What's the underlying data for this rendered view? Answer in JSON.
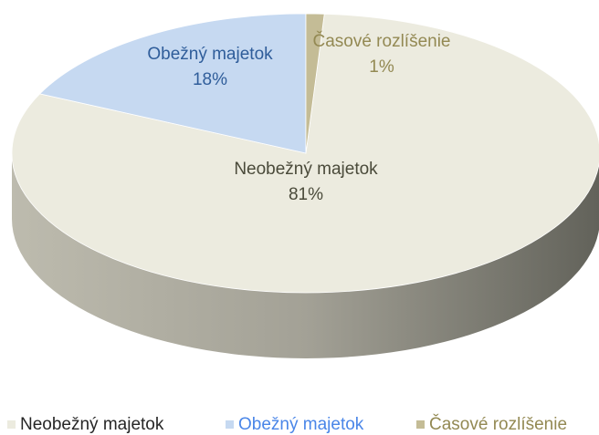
{
  "chart_data": {
    "type": "pie",
    "categories": [
      "Neobežný majetok",
      "Obežný majetok",
      "Časové rozlíšenie"
    ],
    "values": [
      81,
      18,
      1
    ],
    "value_labels": [
      "81%",
      "18%",
      "1%"
    ],
    "colors": [
      "#ecebdf",
      "#c6d9f1",
      "#c4bc96"
    ],
    "label_colors": [
      "#4a4a3a",
      "#2f5d9a",
      "#938953"
    ],
    "legend": "bottom"
  }
}
